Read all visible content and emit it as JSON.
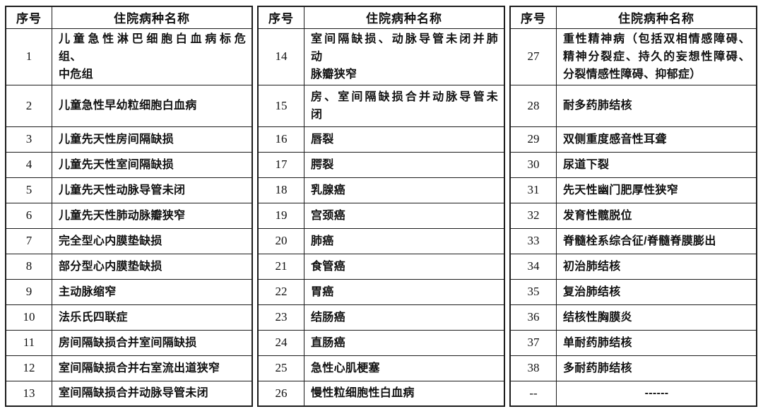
{
  "page": {
    "background": "#ffffff",
    "border_color": "#1c1c1c",
    "text_color": "#111111"
  },
  "header": {
    "serial": "序号",
    "disease": "住院病种名称"
  },
  "tables": [
    {
      "rows": [
        {
          "no": "1",
          "name": "儿童急性淋巴细胞白血病标危\n组、\n中危组",
          "size": 3
        },
        {
          "no": "2",
          "name": "儿童急性早幼粒细胞白血病",
          "size": 2
        },
        {
          "no": "3",
          "name": "儿童先天性房间隔缺损"
        },
        {
          "no": "4",
          "name": "儿童先天性室间隔缺损"
        },
        {
          "no": "5",
          "name": "儿童先天性动脉导管未闭"
        },
        {
          "no": "6",
          "name": "儿童先天性肺动脉瓣狭窄"
        },
        {
          "no": "7",
          "name": "完全型心内膜垫缺损"
        },
        {
          "no": "8",
          "name": "部分型心内膜垫缺损"
        },
        {
          "no": "9",
          "name": "主动脉缩窄"
        },
        {
          "no": "10",
          "name": "法乐氏四联症"
        },
        {
          "no": "11",
          "name": "房间隔缺损合并室间隔缺损"
        },
        {
          "no": "12",
          "name": "室间隔缺损合并右室流出道狭窄"
        },
        {
          "no": "13",
          "name": "室间隔缺损合并动脉导管未闭"
        }
      ]
    },
    {
      "rows": [
        {
          "no": "14",
          "name": "室间隔缺损、动脉导管未闭并肺\n动\n脉瓣狭窄",
          "size": 3
        },
        {
          "no": "15",
          "name": "房、室间隔缺损合并动脉导管未\n闭",
          "size": 2
        },
        {
          "no": "16",
          "name": "唇裂"
        },
        {
          "no": "17",
          "name": "腭裂"
        },
        {
          "no": "18",
          "name": "乳腺癌"
        },
        {
          "no": "19",
          "name": "宫颈癌"
        },
        {
          "no": "20",
          "name": "肺癌"
        },
        {
          "no": "21",
          "name": "食管癌"
        },
        {
          "no": "22",
          "name": "胃癌"
        },
        {
          "no": "23",
          "name": "结肠癌"
        },
        {
          "no": "24",
          "name": "直肠癌"
        },
        {
          "no": "25",
          "name": "急性心肌梗塞"
        },
        {
          "no": "26",
          "name": "慢性粒细胞性白血病"
        }
      ]
    },
    {
      "rows": [
        {
          "no": "27",
          "name": "重性精神病（包括双相情感障碍、\n精神分裂症、持久的妄想性障碍、\n分裂情感性障碍、抑郁症）",
          "size": 3
        },
        {
          "no": "28",
          "name": "耐多药肺结核",
          "size": 2
        },
        {
          "no": "29",
          "name": "双侧重度感音性耳聋"
        },
        {
          "no": "30",
          "name": "尿道下裂"
        },
        {
          "no": "31",
          "name": "先天性幽门肥厚性狭窄"
        },
        {
          "no": "32",
          "name": "发育性髋脱位"
        },
        {
          "no": "33",
          "name": "脊髓栓系综合征/脊髓脊膜膨出"
        },
        {
          "no": "34",
          "name": "初治肺结核"
        },
        {
          "no": "35",
          "name": "复治肺结核"
        },
        {
          "no": "36",
          "name": "结核性胸膜炎"
        },
        {
          "no": "37",
          "name": "单耐药肺结核"
        },
        {
          "no": "38",
          "name": "多耐药肺结核"
        },
        {
          "no": "--",
          "name": "------",
          "align": "center"
        }
      ]
    }
  ]
}
